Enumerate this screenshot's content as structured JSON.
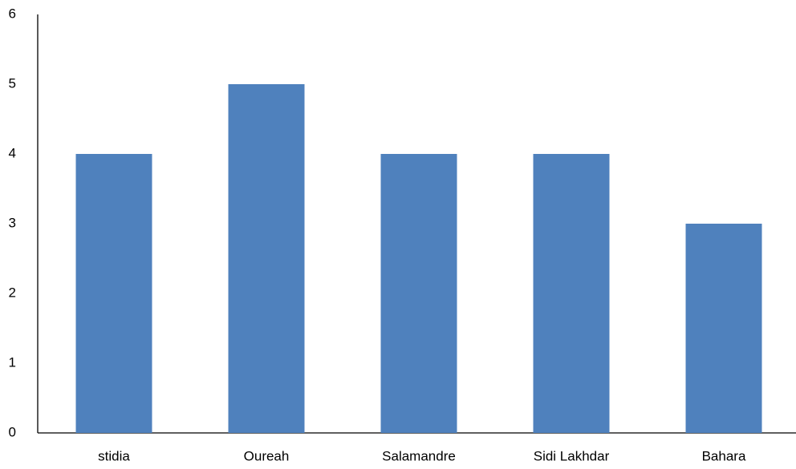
{
  "chart_data": {
    "type": "bar",
    "categories": [
      "stidia",
      "Oureah",
      "Salamandre",
      "Sidi Lakhdar",
      "Bahara"
    ],
    "values": [
      4,
      5,
      4,
      4,
      3
    ],
    "color": "#4f81bd",
    "ylim": [
      0,
      6
    ],
    "yticks": [
      0,
      1,
      2,
      3,
      4,
      5,
      6
    ],
    "grid": false
  }
}
